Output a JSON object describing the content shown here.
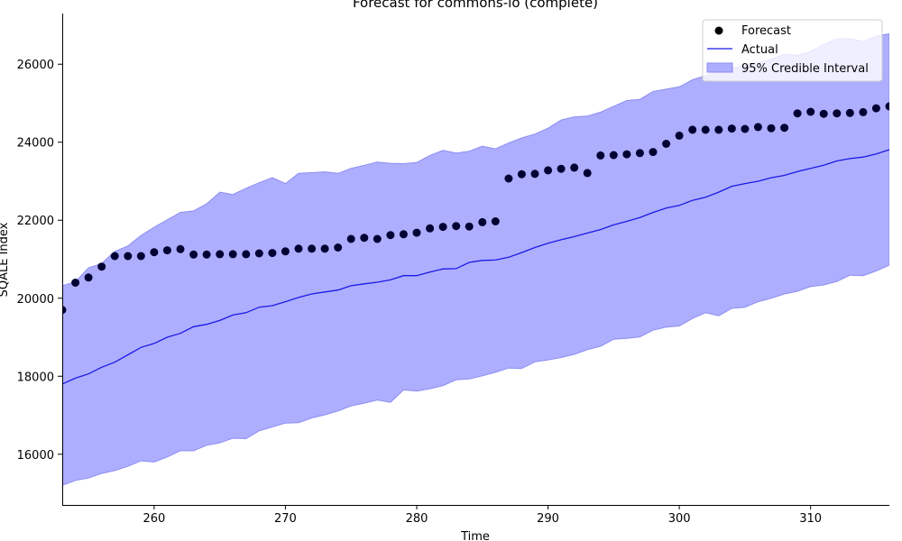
{
  "chart_data": {
    "type": "line",
    "title": "Forecast for commons-io (complete)",
    "xlabel": "Time",
    "ylabel": "SQALE Index",
    "xlim": [
      253,
      316
    ],
    "ylim": [
      14700,
      27300
    ],
    "xticks": [
      260,
      270,
      280,
      290,
      300,
      310
    ],
    "yticks": [
      16000,
      18000,
      20000,
      22000,
      24000,
      26000
    ],
    "grid": false,
    "legend_position": "top-right",
    "legend": [
      {
        "label": "Forecast",
        "kind": "marker"
      },
      {
        "label": "Actual",
        "kind": "line"
      },
      {
        "label": "95% Credible Interval",
        "kind": "patch"
      }
    ],
    "colors": {
      "forecast": "#000033",
      "actual": "#1a1ae6",
      "interval_fill": "#aeaeff",
      "interval_edge": "#8c8cf2"
    },
    "x": [
      253,
      254,
      255,
      256,
      257,
      258,
      259,
      260,
      261,
      262,
      263,
      264,
      265,
      266,
      267,
      268,
      269,
      270,
      271,
      272,
      273,
      274,
      275,
      276,
      277,
      278,
      279,
      280,
      281,
      282,
      283,
      284,
      285,
      286,
      287,
      288,
      289,
      290,
      291,
      292,
      293,
      294,
      295,
      296,
      297,
      298,
      299,
      300,
      301,
      302,
      303,
      304,
      305,
      306,
      307,
      308,
      309,
      310,
      311,
      312,
      313,
      314,
      315,
      316
    ],
    "series": [
      {
        "name": "Forecast",
        "kind": "scatter",
        "values": [
          19700,
          20400,
          20530,
          20810,
          21080,
          21080,
          21080,
          21180,
          21230,
          21260,
          21120,
          21120,
          21130,
          21130,
          21130,
          21150,
          21160,
          21200,
          21270,
          21270,
          21270,
          21300,
          21520,
          21550,
          21520,
          21620,
          21640,
          21680,
          21790,
          21830,
          21850,
          21840,
          21950,
          21970,
          23070,
          23180,
          23190,
          23280,
          23320,
          23350,
          23210,
          23660,
          23670,
          23690,
          23720,
          23750,
          23960,
          24170,
          24320,
          24320,
          24320,
          24350,
          24340,
          24390,
          24360,
          24370,
          24740,
          24780,
          24730,
          24740,
          24750,
          24770,
          24870,
          24920
        ]
      },
      {
        "name": "Actual",
        "kind": "line",
        "values": [
          17800,
          17950,
          18060,
          18230,
          18360,
          18550,
          18740,
          18840,
          19000,
          19100,
          19270,
          19330,
          19430,
          19570,
          19630,
          19770,
          19810,
          19910,
          20020,
          20110,
          20160,
          20210,
          20320,
          20370,
          20410,
          20470,
          20580,
          20580,
          20670,
          20750,
          20760,
          20920,
          20970,
          20980,
          21050,
          21170,
          21300,
          21410,
          21500,
          21580,
          21670,
          21760,
          21880,
          21970,
          22070,
          22200,
          22310,
          22380,
          22510,
          22590,
          22720,
          22870,
          22940,
          23000,
          23090,
          23150,
          23250,
          23330,
          23410,
          23520,
          23580,
          23620,
          23700,
          23810
        ]
      }
    ],
    "interval": {
      "name": "95% Credible Interval",
      "lower": [
        15200,
        15330,
        15390,
        15510,
        15580,
        15690,
        15830,
        15800,
        15930,
        16090,
        16090,
        16230,
        16290,
        16410,
        16400,
        16600,
        16700,
        16800,
        16810,
        16930,
        17010,
        17110,
        17240,
        17310,
        17390,
        17330,
        17650,
        17620,
        17680,
        17760,
        17910,
        17930,
        18010,
        18100,
        18210,
        18200,
        18370,
        18420,
        18480,
        18560,
        18680,
        18770,
        18950,
        18970,
        19010,
        19180,
        19260,
        19290,
        19480,
        19630,
        19550,
        19740,
        19770,
        19910,
        20000,
        20110,
        20180,
        20300,
        20340,
        20430,
        20590,
        20580,
        20700,
        20850
      ],
      "upper": [
        20320,
        20420,
        20780,
        20890,
        21200,
        21340,
        21610,
        21820,
        22010,
        22200,
        22240,
        22420,
        22720,
        22660,
        22820,
        22960,
        23090,
        22940,
        23200,
        23220,
        23240,
        23200,
        23330,
        23410,
        23490,
        23460,
        23450,
        23480,
        23660,
        23790,
        23720,
        23770,
        23900,
        23830,
        23980,
        24110,
        24210,
        24360,
        24570,
        24650,
        24670,
        24770,
        24920,
        25070,
        25100,
        25300,
        25360,
        25420,
        25600,
        25710,
        25830,
        25900,
        25970,
        26040,
        26120,
        26260,
        26230,
        26330,
        26510,
        26650,
        26660,
        26580,
        26720,
        26780
      ]
    }
  }
}
